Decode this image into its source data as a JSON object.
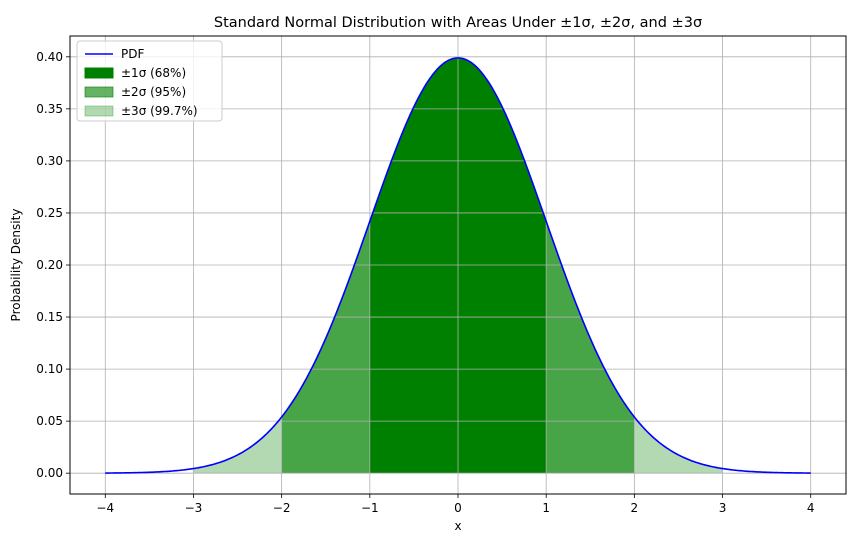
{
  "chart_data": {
    "type": "area",
    "title": "Standard Normal Distribution with Areas Under ±1σ, ±2σ, and ±3σ",
    "xlabel": "x",
    "ylabel": "Probability Density",
    "xlim": [
      -4.4,
      4.4
    ],
    "ylim": [
      -0.02,
      0.42
    ],
    "xticks": [
      -4,
      -3,
      -2,
      -1,
      0,
      1,
      2,
      3,
      4
    ],
    "xtick_labels": [
      "−4",
      "−3",
      "−2",
      "−1",
      "0",
      "1",
      "2",
      "3",
      "4"
    ],
    "yticks": [
      0.0,
      0.05,
      0.1,
      0.15,
      0.2,
      0.25,
      0.3,
      0.35,
      0.4
    ],
    "ytick_labels": [
      "0.00",
      "0.05",
      "0.10",
      "0.15",
      "0.20",
      "0.25",
      "0.30",
      "0.35",
      "0.40"
    ],
    "grid": true,
    "legend_position": "top-left",
    "series": [
      {
        "name": "PDF",
        "kind": "line",
        "color": "#0000ff",
        "x": [
          -4.0,
          -3.5,
          -3.0,
          -2.5,
          -2.0,
          -1.5,
          -1.0,
          -0.5,
          0.0,
          0.5,
          1.0,
          1.5,
          2.0,
          2.5,
          3.0,
          3.5,
          4.0
        ],
        "y": [
          0.0001,
          0.0009,
          0.0044,
          0.0175,
          0.054,
          0.1295,
          0.242,
          0.3521,
          0.3989,
          0.3521,
          0.242,
          0.1295,
          0.054,
          0.0175,
          0.0044,
          0.0009,
          0.0001
        ]
      },
      {
        "name": "±1σ (68%)",
        "kind": "fill",
        "color": "#008000",
        "opacity": 1.0,
        "range": [
          -1,
          1
        ]
      },
      {
        "name": "±2σ (95%)",
        "kind": "fill",
        "color": "#008000",
        "opacity": 0.6,
        "range": [
          -2,
          2
        ]
      },
      {
        "name": "±3σ (99.7%)",
        "kind": "fill",
        "color": "#008000",
        "opacity": 0.3,
        "range": [
          -3,
          3
        ]
      }
    ]
  }
}
